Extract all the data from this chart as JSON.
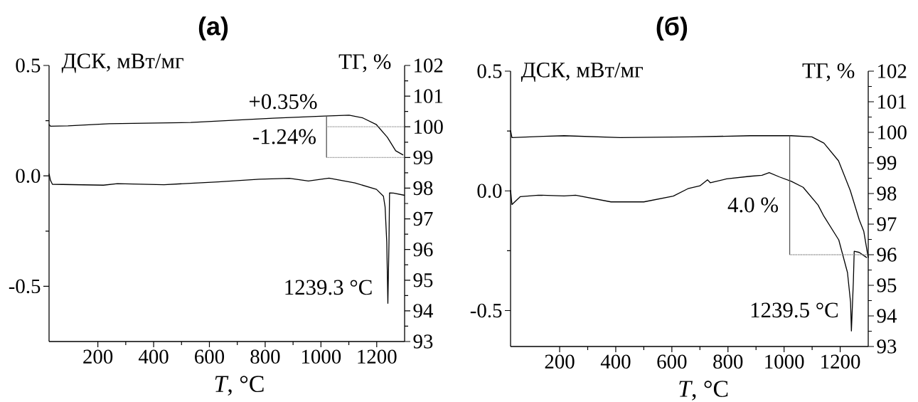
{
  "chart_data": [
    {
      "type": "line",
      "title": "(а)",
      "xlabel": "*T*, °C",
      "ylabel": "ДСК, мВт/мг",
      "y2label": "ТГ, %",
      "xlim": [
        25,
        1300
      ],
      "xticks": [
        200,
        400,
        600,
        800,
        1000,
        1200
      ],
      "ylim": [
        -0.75,
        0.5
      ],
      "yticks": [
        {
          "value": -0.5,
          "label": "-0.5"
        },
        {
          "value": 0,
          "label": "0.0"
        },
        {
          "value": 0.5,
          "label": "0.5"
        }
      ],
      "y2lim": [
        93,
        102
      ],
      "y2ticks": [
        93,
        94,
        95,
        96,
        97,
        98,
        99,
        100,
        101,
        102
      ],
      "annotations": [
        "+0.35%",
        "-1.24%",
        "1239.3 °C"
      ],
      "series": [
        {
          "color": "#000000",
          "x": [
            25,
            30,
            37,
            220,
            270,
            437,
            632,
            779,
            887,
            955,
            1029,
            1122,
            1199,
            1224,
            1230,
            1236,
            1240,
            1244,
            1246,
            1260,
            1300
          ],
          "values": [
            0.01,
            -0.02,
            -0.038,
            -0.042,
            -0.035,
            -0.04,
            -0.027,
            -0.015,
            -0.011,
            -0.023,
            -0.01,
            -0.032,
            -0.061,
            -0.092,
            -0.14,
            -0.3,
            -0.577,
            -0.3,
            -0.077,
            -0.078,
            -0.088
          ]
        },
        {
          "color": "#000000",
          "axis": "y2",
          "x": [
            25,
            30,
            93,
            241,
            533,
            828,
            1013,
            1101,
            1150,
            1199,
            1238,
            1268,
            1295
          ],
          "values": [
            100.08,
            100.02,
            100.03,
            100.1,
            100.14,
            100.28,
            100.35,
            100.38,
            100.29,
            100.07,
            99.66,
            99.22,
            99.08
          ]
        },
        {
          "color": "#555555",
          "axis": "y2",
          "x": [
            1020,
            1020
          ],
          "values": [
            100.34,
            99
          ]
        },
        {
          "color": "#888888",
          "axis": "y2",
          "line_style": "dotted",
          "x": [
            1020,
            1300
          ],
          "values": [
            100,
            100
          ]
        },
        {
          "color": "#888888",
          "axis": "y2",
          "line_style": "dotted",
          "x": [
            1020,
            1300
          ],
          "values": [
            99,
            99
          ]
        }
      ]
    },
    {
      "type": "line",
      "title": "(б)",
      "xlabel": "*T*, °C",
      "ylabel": "ДСК, мВт/мг",
      "y2label": "ТГ, %",
      "xlim": [
        25,
        1300
      ],
      "xticks": [
        200,
        400,
        600,
        800,
        1000,
        1200
      ],
      "ylim": [
        -0.65,
        0.5
      ],
      "yticks": [
        {
          "value": -0.5,
          "label": "-0.5"
        },
        {
          "value": 0,
          "label": "0.0"
        },
        {
          "value": 0.5,
          "label": "0.5"
        }
      ],
      "y2lim": [
        93,
        102
      ],
      "y2ticks": [
        93,
        94,
        95,
        96,
        97,
        98,
        99,
        100,
        101,
        102
      ],
      "annotations": [
        "4.0 %",
        "1239.5 °C"
      ],
      "series": [
        {
          "color": "#000000",
          "x": [
            25,
            30,
            60,
            124,
            216,
            257,
            383,
            500,
            605,
            657,
            700,
            727,
            737,
            795,
            879,
            921,
            947,
            984,
            1026,
            1068,
            1121,
            1142,
            1195,
            1226,
            1237,
            1240,
            1247,
            1250,
            1268,
            1295
          ],
          "values": [
            0.003,
            -0.057,
            -0.024,
            -0.018,
            -0.021,
            -0.018,
            -0.046,
            -0.046,
            -0.022,
            0.009,
            0.021,
            0.046,
            0.034,
            0.05,
            0.061,
            0.065,
            0.076,
            0.058,
            0.04,
            0.015,
            -0.059,
            -0.106,
            -0.205,
            -0.341,
            -0.465,
            -0.585,
            -0.378,
            -0.252,
            -0.257,
            -0.279
          ]
        },
        {
          "color": "#000000",
          "axis": "y2",
          "x": [
            25,
            30,
            142,
            216,
            416,
            668,
            879,
            1026,
            1099,
            1142,
            1194,
            1236,
            1268,
            1284,
            1300
          ],
          "values": [
            100.06,
            99.83,
            99.87,
            99.89,
            99.83,
            99.85,
            99.89,
            99.89,
            99.85,
            99.65,
            99.07,
            98.1,
            97.14,
            96.77,
            95.9
          ]
        },
        {
          "color": "#555555",
          "axis": "y2",
          "x": [
            1020,
            1020
          ],
          "values": [
            99.89,
            96
          ]
        },
        {
          "color": "#888888",
          "axis": "y2",
          "line_style": "dotted",
          "x": [
            1020,
            1300
          ],
          "values": [
            96,
            96
          ]
        }
      ]
    }
  ]
}
